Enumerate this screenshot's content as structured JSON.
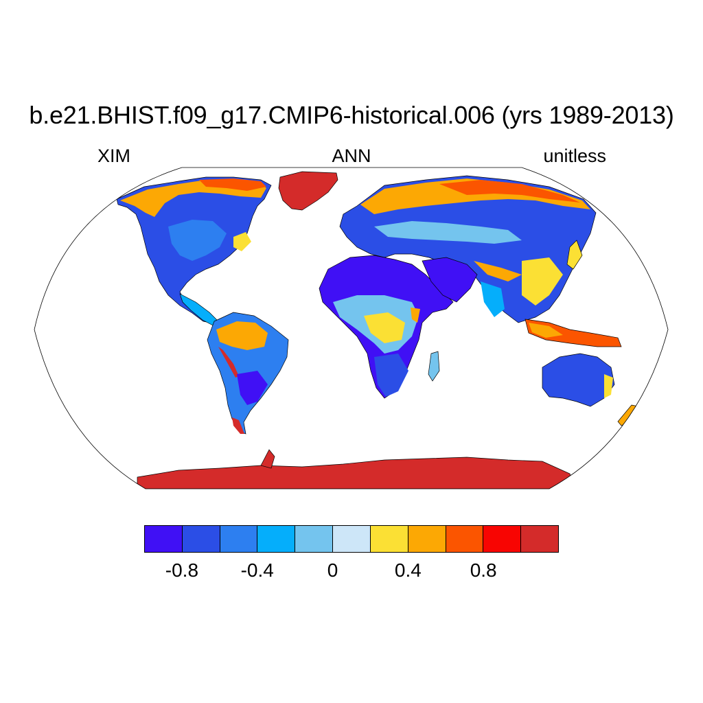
{
  "title": "b.e21.BHIST.f09_g17.CMIP6-historical.006 (yrs 1989-2013)",
  "left_label": "XIM",
  "center_label": "ANN",
  "right_label": "unitless",
  "colorbar": {
    "colors": [
      "#4010f5",
      "#2b4ee6",
      "#2d7ff0",
      "#05aefb",
      "#74c4ee",
      "#cde6f8",
      "#fbe034",
      "#fca804",
      "#fb5500",
      "#f80502",
      "#d42b2a"
    ],
    "tick_labels": [
      "-0.8",
      "-0.4",
      "0",
      "0.4",
      "0.8"
    ],
    "levels": [
      -1.0,
      -0.8,
      -0.6,
      -0.4,
      -0.2,
      0,
      0.2,
      0.4,
      0.6,
      0.8,
      1.0
    ]
  },
  "map": {
    "projection": "Robinson",
    "field": "XIM",
    "season": "ANN",
    "units": "unitless"
  }
}
